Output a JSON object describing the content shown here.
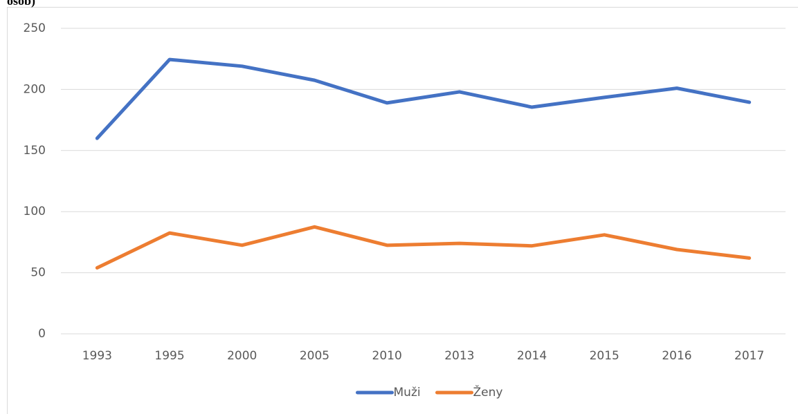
{
  "chart_data": {
    "type": "line",
    "title": "osob)",
    "categories": [
      "1993",
      "1995",
      "2000",
      "2005",
      "2010",
      "2013",
      "2014",
      "2015",
      "2016",
      "2017"
    ],
    "series": [
      {
        "name": "Muži",
        "color": "#4472c4",
        "values": [
          160,
          224.5,
          219,
          207.5,
          189,
          198,
          185.5,
          193.5,
          201,
          189.5
        ]
      },
      {
        "name": "Ženy",
        "color": "#ed7d31",
        "values": [
          54,
          82.5,
          72.5,
          87.5,
          72.5,
          74,
          72,
          81,
          69,
          62
        ]
      }
    ],
    "ylim": [
      0,
      250
    ],
    "yticks": [
      0,
      50,
      100,
      150,
      200,
      250
    ],
    "grid": true,
    "legend": "bottom"
  }
}
